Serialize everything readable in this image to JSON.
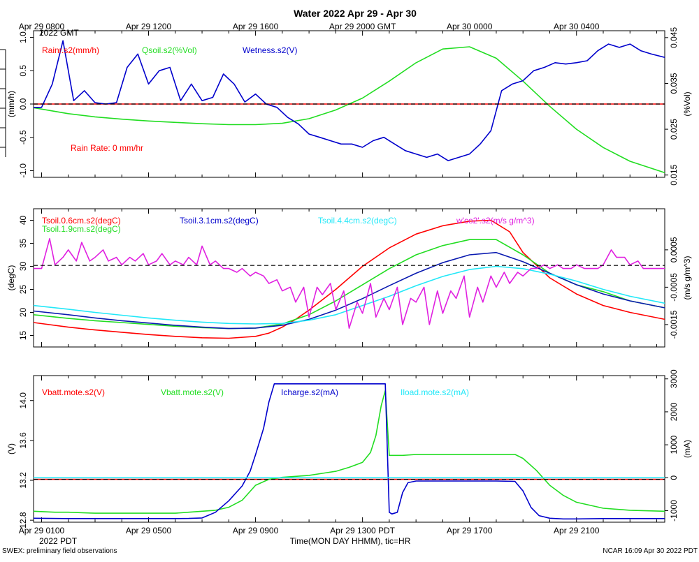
{
  "title": "Water 2022 Apr 29 - Apr 30",
  "footer": {
    "left": "SWEX: preliminary field observations",
    "center": "Time(MON DAY HHMM), tic=HR",
    "right": "NCAR 16:09 Apr 30 2022 PDT"
  },
  "top_axis": {
    "ticks": [
      {
        "hour": 0,
        "label": "Apr 29 0800"
      },
      {
        "hour": 4,
        "label": "Apr 29 1200"
      },
      {
        "hour": 8,
        "label": "Apr 29 1600"
      },
      {
        "hour": 12,
        "label": "Apr 29 2000 GMT"
      },
      {
        "hour": 16,
        "label": "Apr 30 0000"
      },
      {
        "hour": 20,
        "label": "Apr 30 0400"
      }
    ],
    "sub_label": "2022 GMT"
  },
  "bottom_axis": {
    "ticks": [
      {
        "hour": 0,
        "label": "Apr 29 0100"
      },
      {
        "hour": 4,
        "label": "Apr 29 0500"
      },
      {
        "hour": 8,
        "label": "Apr 29 0900"
      },
      {
        "hour": 12,
        "label": "Apr 29 1300 PDT"
      },
      {
        "hour": 16,
        "label": "Apr 29 1700"
      },
      {
        "hour": 20,
        "label": "Apr 29 2100"
      }
    ],
    "sub_label": "2022 PDT"
  },
  "colors": {
    "red": "#ff0000",
    "green": "#22dd22",
    "blue": "#0000cc",
    "cyan": "#22e8f8",
    "magenta": "#e020e0",
    "navy": "#0a1ab0"
  },
  "chart_data": [
    {
      "type": "line",
      "panel": "water",
      "xlim": [
        -0.3,
        23.3
      ],
      "left_axis": {
        "label": "(mm/h)",
        "ylim": [
          -1.1,
          1.1
        ],
        "ticks": [
          "1.0",
          "0.5",
          "0.0",
          "-0.5",
          "-1.0"
        ],
        "tick_values": [
          1.0,
          0.5,
          0.0,
          -0.5,
          -1.0
        ]
      },
      "right_axis": {
        "label": "(%Vol)",
        "ylim": [
          0.0145,
          0.0465
        ],
        "ticks": [
          "0.045",
          "0.035",
          "0.025",
          "0.015"
        ],
        "tick_values": [
          0.045,
          0.035,
          0.025,
          0.015
        ]
      },
      "reference_line": 0.0,
      "annotation": "Rain Rate: 0 mm/hr",
      "series": [
        {
          "name": "Rainr.s2(mm/h)",
          "color": "red",
          "axis": "left",
          "x": [
            -0.3,
            23.3
          ],
          "values": [
            0.0,
            0.0
          ]
        },
        {
          "name": "Qsoil.s2(%Vol)",
          "color": "green",
          "axis": "right",
          "x": [
            -0.3,
            1,
            2,
            3,
            4,
            5,
            6,
            7,
            8,
            9,
            10,
            11,
            12,
            13,
            14,
            15,
            16,
            17,
            18,
            19,
            20,
            21,
            22,
            23.3
          ],
          "values": [
            0.0297,
            0.0284,
            0.0277,
            0.0272,
            0.0268,
            0.0265,
            0.0262,
            0.026,
            0.026,
            0.0263,
            0.0273,
            0.0292,
            0.0318,
            0.0355,
            0.0395,
            0.0425,
            0.043,
            0.0405,
            0.0355,
            0.03,
            0.025,
            0.021,
            0.018,
            0.0155
          ]
        },
        {
          "name": "Wetness.s2(V)",
          "color": "blue",
          "axis": "left",
          "x": [
            -0.3,
            0,
            0.4,
            0.8,
            1.2,
            1.6,
            2.0,
            2.4,
            2.8,
            3.2,
            3.6,
            4.0,
            4.4,
            4.8,
            5.2,
            5.6,
            6.0,
            6.4,
            6.8,
            7.2,
            7.6,
            8.0,
            8.4,
            8.8,
            9.2,
            9.6,
            10.0,
            10.4,
            10.8,
            11.2,
            11.6,
            12.0,
            12.4,
            12.8,
            13.2,
            13.6,
            14.0,
            14.4,
            14.8,
            15.2,
            15.6,
            16.0,
            16.4,
            16.8,
            17.2,
            17.6,
            18.0,
            18.4,
            18.8,
            19.2,
            19.6,
            20.0,
            20.4,
            20.8,
            21.2,
            21.6,
            22.0,
            22.4,
            22.8,
            23.3
          ],
          "values": [
            -0.05,
            -0.05,
            0.3,
            0.95,
            0.05,
            0.2,
            0.02,
            0.0,
            0.02,
            0.55,
            0.75,
            0.3,
            0.5,
            0.55,
            0.05,
            0.3,
            0.05,
            0.1,
            0.45,
            0.3,
            0.03,
            0.15,
            0.0,
            -0.05,
            -0.2,
            -0.3,
            -0.45,
            -0.5,
            -0.55,
            -0.6,
            -0.6,
            -0.65,
            -0.55,
            -0.5,
            -0.6,
            -0.7,
            -0.75,
            -0.8,
            -0.75,
            -0.85,
            -0.8,
            -0.75,
            -0.6,
            -0.4,
            0.2,
            0.3,
            0.35,
            0.5,
            0.55,
            0.62,
            0.6,
            0.62,
            0.65,
            0.8,
            0.9,
            0.85,
            0.9,
            0.8,
            0.75,
            0.7
          ]
        }
      ]
    },
    {
      "type": "line",
      "panel": "temperature",
      "xlim": [
        -0.3,
        23.3
      ],
      "left_axis": {
        "label": "(degC)",
        "ylim": [
          12.5,
          42.5
        ],
        "ticks": [
          "40",
          "35",
          "30",
          "25",
          "20",
          "15"
        ],
        "tick_values": [
          40,
          35,
          30,
          25,
          20,
          15
        ]
      },
      "right_axis": {
        "label": "(m/s g/m^3)",
        "ylim": [
          -0.0021,
          0.0016
        ],
        "ticks": [
          "0.0005",
          "-0.0005",
          "-0.0015"
        ],
        "tick_values": [
          0.0005,
          -0.0005,
          -0.0015
        ]
      },
      "reference_line": 30.2,
      "series": [
        {
          "name": "Tsoil.0.6cm.s2(degC)",
          "color": "red",
          "axis": "left",
          "x": [
            -0.3,
            1,
            2,
            3,
            4,
            5,
            6,
            7,
            8,
            8.5,
            9,
            9.5,
            10,
            11,
            12,
            13,
            14,
            15,
            16,
            16.8,
            17.5,
            18,
            19,
            20,
            21,
            22,
            23.3
          ],
          "values": [
            17.8,
            16.8,
            16.2,
            15.7,
            15.2,
            14.8,
            14.5,
            14.4,
            14.8,
            15.5,
            16.8,
            18.5,
            20.5,
            25.0,
            30.0,
            34.0,
            37.0,
            38.8,
            39.8,
            40.0,
            37.5,
            33.0,
            27.5,
            24.0,
            21.5,
            20.0,
            18.5
          ]
        },
        {
          "name": "Tsoil.1.9cm.s2(degC)",
          "color": "green",
          "axis": "left",
          "x": [
            -0.3,
            1,
            2,
            3,
            4,
            5,
            6,
            7,
            8,
            9,
            10,
            11,
            12,
            13,
            14,
            15,
            16,
            17,
            18,
            19,
            20,
            21,
            22,
            23.3
          ],
          "values": [
            19.5,
            18.7,
            18.2,
            17.8,
            17.4,
            17.0,
            16.7,
            16.5,
            16.6,
            17.5,
            19.5,
            22.5,
            26.0,
            29.5,
            32.5,
            34.5,
            35.8,
            35.8,
            32.5,
            28.5,
            26.0,
            24.5,
            22.5,
            21.0
          ]
        },
        {
          "name": "Tsoil.3.1cm.s2(degC)",
          "color": "navy",
          "axis": "left",
          "x": [
            -0.3,
            1,
            2,
            3,
            4,
            5,
            6,
            7,
            8,
            9,
            10,
            11,
            12,
            13,
            14,
            15,
            16,
            17,
            18,
            19,
            20,
            21,
            22,
            23.3
          ],
          "values": [
            20.3,
            19.5,
            18.8,
            18.2,
            17.7,
            17.2,
            16.8,
            16.5,
            16.6,
            17.2,
            18.5,
            20.5,
            23.0,
            25.8,
            28.5,
            30.8,
            32.5,
            33.0,
            31.0,
            28.5,
            26.0,
            24.0,
            22.5,
            21.0
          ]
        },
        {
          "name": "Tsoil.4.4cm.s2(degC)",
          "color": "cyan",
          "axis": "left",
          "x": [
            -0.3,
            1,
            2,
            3,
            4,
            5,
            6,
            7,
            8,
            9,
            10,
            11,
            12,
            13,
            14,
            15,
            16,
            17,
            18,
            19,
            20,
            21,
            22,
            23.3
          ],
          "values": [
            21.5,
            20.7,
            20.0,
            19.4,
            18.8,
            18.3,
            17.9,
            17.6,
            17.5,
            17.6,
            18.3,
            19.5,
            21.5,
            23.5,
            25.8,
            27.8,
            29.3,
            30.0,
            29.5,
            28.3,
            26.8,
            25.0,
            23.5,
            22.0
          ]
        },
        {
          "name": "w'co2'.s2(m/s g/m^3)",
          "color": "magenta",
          "axis": "right",
          "x": [
            -0.3,
            0.0,
            0.3,
            0.5,
            0.8,
            1.0,
            1.3,
            1.5,
            1.8,
            2.0,
            2.3,
            2.5,
            2.8,
            3.0,
            3.3,
            3.5,
            3.8,
            4.0,
            4.3,
            4.5,
            4.8,
            5.0,
            5.3,
            5.5,
            5.8,
            6.0,
            6.3,
            6.5,
            6.8,
            7.0,
            7.3,
            7.5,
            7.8,
            8.0,
            8.3,
            8.5,
            8.8,
            9.0,
            9.3,
            9.5,
            9.8,
            10.0,
            10.3,
            10.5,
            10.8,
            11.0,
            11.3,
            11.5,
            11.8,
            12.0,
            12.3,
            12.5,
            12.8,
            13.0,
            13.3,
            13.5,
            13.8,
            14.0,
            14.3,
            14.5,
            14.8,
            15.0,
            15.3,
            15.5,
            15.8,
            16.0,
            16.3,
            16.5,
            16.8,
            17.0,
            17.3,
            17.5,
            17.8,
            18.0,
            18.3,
            18.5,
            18.8,
            19.0,
            19.3,
            19.5,
            19.8,
            20.0,
            20.3,
            20.5,
            20.8,
            21.0,
            21.3,
            21.5,
            21.8,
            22.0,
            22.3,
            22.5,
            22.8,
            23.3
          ],
          "values": [
            0.0,
            0.0,
            0.0008,
            0.0001,
            0.0003,
            0.0005,
            0.0002,
            0.0007,
            0.0002,
            0.0003,
            0.0005,
            0.0002,
            0.0003,
            0.0001,
            0.0003,
            0.0002,
            0.0004,
            0.0001,
            0.0002,
            0.0004,
            0.0001,
            0.0002,
            0.0001,
            0.0003,
            0.0001,
            0.0006,
            0.0001,
            0.0002,
            0.0,
            0.0,
            -0.0001,
            0.0,
            -0.0002,
            -0.0001,
            -0.0002,
            -0.0004,
            -0.0003,
            -0.0006,
            -0.0005,
            -0.0009,
            -0.0005,
            -0.0013,
            -0.0005,
            -0.0007,
            -0.0004,
            -0.0011,
            -0.0006,
            -0.0016,
            -0.0009,
            -0.0012,
            -0.0004,
            -0.0013,
            -0.0008,
            -0.0011,
            -0.0005,
            -0.0015,
            -0.0008,
            -0.0009,
            -0.0005,
            -0.0015,
            -0.0006,
            -0.0012,
            -0.0006,
            -0.0008,
            -0.0002,
            -0.0013,
            -0.0005,
            -0.0009,
            -0.0002,
            -0.0005,
            -0.0001,
            -0.0004,
            -0.0001,
            -0.0002,
            0.0,
            0.0,
            0.0001,
            0.0,
            0.0001,
            0.0,
            0.0,
            0.0001,
            0.0,
            0.0,
            0.0,
            0.0001,
            0.0005,
            0.0003,
            0.0003,
            0.0001,
            0.0002,
            0.0,
            0.0,
            0.0
          ]
        }
      ]
    },
    {
      "type": "line",
      "panel": "power",
      "xlim": [
        -0.3,
        23.3
      ],
      "left_axis": {
        "label": "(V)",
        "ylim": [
          12.78,
          14.25
        ],
        "ticks": [
          "14.0",
          "13.6",
          "13.2",
          "12.8"
        ],
        "tick_values": [
          14.0,
          13.6,
          13.2,
          12.8
        ]
      },
      "right_axis": {
        "label": "(mA)",
        "ylim": [
          -1350,
          3100
        ],
        "ticks": [
          "3000",
          "2000",
          "1000",
          "0",
          "-1000"
        ],
        "tick_values": [
          3000,
          2000,
          1000,
          0,
          -1000
        ]
      },
      "reference_line": 13.21,
      "series": [
        {
          "name": "Vbatt.mote.s2(V)",
          "color": "red",
          "axis": "left",
          "x": [
            -0.3,
            23.3
          ],
          "values": [
            13.21,
            13.21
          ]
        },
        {
          "name": "Vbatt.mote.s2(V)",
          "color": "green",
          "axis": "left",
          "x": [
            -0.3,
            0.5,
            1,
            2,
            3,
            4,
            5,
            5.5,
            6.0,
            6.5,
            7.0,
            7.5,
            8.0,
            8.5,
            9.0,
            9.5,
            10.0,
            10.5,
            11.0,
            11.5,
            12.0,
            12.3,
            12.5,
            12.7,
            12.85,
            13.0,
            13.5,
            14,
            15,
            16,
            17,
            17.7,
            18.0,
            18.5,
            19.0,
            19.5,
            20.0,
            21,
            22,
            23.3
          ],
          "values": [
            12.89,
            12.88,
            12.88,
            12.87,
            12.87,
            12.87,
            12.87,
            12.88,
            12.89,
            12.9,
            12.93,
            13.0,
            13.15,
            13.21,
            13.23,
            13.24,
            13.25,
            13.27,
            13.29,
            13.33,
            13.38,
            13.48,
            13.65,
            13.95,
            14.1,
            13.45,
            13.45,
            13.46,
            13.46,
            13.46,
            13.46,
            13.46,
            13.42,
            13.3,
            13.15,
            13.05,
            12.98,
            12.92,
            12.9,
            12.89
          ]
        },
        {
          "name": "Icharge.s2(mA)",
          "color": "blue",
          "axis": "right",
          "x": [
            -0.3,
            1,
            2,
            3,
            4,
            5,
            5.5,
            6.0,
            6.5,
            7.0,
            7.5,
            7.8,
            8.0,
            8.3,
            8.5,
            8.7,
            9.0,
            10,
            11,
            12.0,
            12.7,
            12.85,
            13.0,
            13.1,
            13.3,
            13.5,
            13.7,
            14,
            15,
            16,
            17,
            17.7,
            18.0,
            18.3,
            18.6,
            19.0,
            19.5,
            20,
            21,
            22,
            23.3
          ],
          "values": [
            -1230,
            -1240,
            -1240,
            -1240,
            -1240,
            -1240,
            -1235,
            -1220,
            -1050,
            -700,
            -250,
            200,
            700,
            1500,
            2300,
            2850,
            2850,
            2850,
            2850,
            2850,
            2850,
            2850,
            -1050,
            -1100,
            -1050,
            -450,
            -150,
            -100,
            -100,
            -100,
            -100,
            -110,
            -400,
            -900,
            -1150,
            -1230,
            -1250,
            -1250,
            -1240,
            -1240,
            -1240
          ]
        },
        {
          "name": "Iload.mote.s2(mA)",
          "color": "cyan",
          "axis": "right",
          "x": [
            -0.3,
            23.3
          ],
          "values": [
            0,
            0
          ]
        }
      ]
    }
  ]
}
